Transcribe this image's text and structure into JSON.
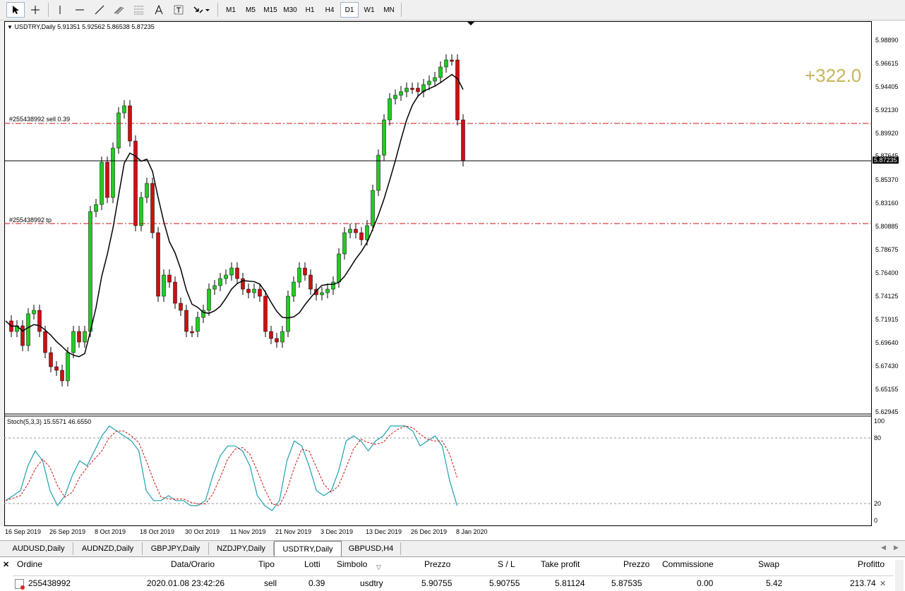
{
  "toolbar": {
    "timeframes": [
      "M1",
      "M5",
      "M15",
      "M30",
      "H1",
      "H4",
      "D1",
      "W1",
      "MN"
    ],
    "selected_timeframe": "D1"
  },
  "chart": {
    "header": "USDTRY,Daily  5.91351 5.92562 5.86538 5.87235",
    "profit_label": "+322.0",
    "order_sell_label": "#255438992 sell 0.39",
    "order_tp_label": "#255438992 tp",
    "current_price": "5.87235",
    "price_ticks": [
      "5.98890",
      "5.96615",
      "5.94405",
      "5.92130",
      "5.89920",
      "5.87645",
      "5.85370",
      "5.83160",
      "5.80885",
      "5.78675",
      "5.76400",
      "5.74125",
      "5.71915",
      "5.69640",
      "5.67430",
      "5.65155",
      "5.62945"
    ],
    "indicator_label": "Stoch(5,3,3) 15.5571 46.6550",
    "indicator_ticks": [
      "100",
      "80",
      "20",
      "0"
    ],
    "date_ticks": [
      "16 Sep 2019",
      "26 Sep 2019",
      "8 Oct 2019",
      "18 Oct 2019",
      "30 Oct 2019",
      "11 Nov 2019",
      "21 Nov 2019",
      "3 Dec 2019",
      "13 Dec 2019",
      "26 Dec 2019",
      "8 Jan 2020"
    ],
    "colors": {
      "bull": "#22cc22",
      "bear": "#cc1111",
      "ma": "#000000",
      "level": "#cc1111",
      "stoch_main": "#20a0b0",
      "stoch_signal": "#cc1111",
      "profit": "#c8b45a"
    }
  },
  "tabs": [
    "AUDUSD,Daily",
    "AUDNZD,Daily",
    "GBPJPY,Daily",
    "NZDJPY,Daily",
    "USDTRY,Daily",
    "GBPUSD,H4"
  ],
  "active_tab": "USDTRY,Daily",
  "terminal": {
    "headers": [
      "Ordine",
      "Data/Orario",
      "Tipo",
      "Lotti",
      "Simbolo",
      "Prezzo",
      "S / L",
      "Take profit",
      "Prezzo",
      "Commissione",
      "Swap",
      "Profitto"
    ],
    "row": [
      "255438992",
      "2020.01.08 23:42:26",
      "sell",
      "0.39",
      "usdtry",
      "5.90755",
      "5.90755",
      "5.81124",
      "5.87535",
      "0.00",
      "5.42",
      "213.74"
    ]
  }
}
